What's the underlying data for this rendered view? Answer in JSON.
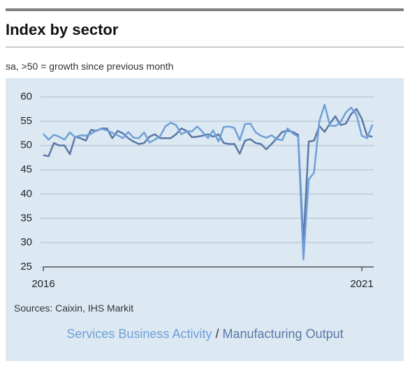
{
  "chart_data": {
    "type": "line",
    "title": "Index by sector",
    "subtitle": "sa, >50 = growth since previous month",
    "source": "Sources: Caixin, IHS Markit",
    "legend_separator": "/",
    "categories": [
      "2016",
      null,
      null,
      null,
      null,
      null,
      null,
      null,
      null,
      null,
      null,
      null,
      null,
      null,
      null,
      null,
      null,
      null,
      null,
      null,
      null,
      null,
      null,
      null,
      null,
      null,
      null,
      null,
      null,
      null,
      null,
      null,
      null,
      null,
      null,
      null,
      null,
      null,
      null,
      null,
      null,
      null,
      null,
      null,
      null,
      null,
      null,
      null,
      null,
      null,
      null,
      null,
      null,
      null,
      null,
      null,
      null,
      null,
      null,
      null,
      "2021",
      null,
      null
    ],
    "ylim": [
      25,
      60
    ],
    "yticks": [
      25,
      30,
      35,
      40,
      45,
      50,
      55,
      60
    ],
    "grid": true,
    "series": [
      {
        "name": "Services Business Activity",
        "color": "#6f9fd8",
        "values": [
          52.4,
          51.2,
          52.2,
          51.8,
          51.2,
          52.7,
          51.7,
          52.1,
          52.0,
          52.4,
          53.1,
          53.4,
          53.1,
          52.6,
          52.1,
          51.5,
          52.8,
          51.6,
          51.5,
          52.7,
          50.6,
          51.2,
          51.9,
          53.9,
          54.7,
          54.2,
          52.3,
          52.9,
          52.9,
          53.9,
          52.8,
          51.5,
          53.1,
          50.8,
          53.8,
          53.9,
          53.6,
          51.1,
          54.4,
          54.5,
          52.7,
          52.0,
          51.6,
          52.1,
          51.3,
          51.1,
          53.5,
          52.5,
          51.8,
          26.5,
          43.0,
          44.4,
          55.0,
          58.4,
          54.1,
          54.0,
          54.8,
          56.8,
          57.8,
          56.3,
          52.0,
          51.5,
          54.3
        ]
      },
      {
        "name": "Manufacturing Output",
        "color": "#5b77a6",
        "values": [
          48.0,
          47.8,
          50.5,
          50.0,
          50.0,
          48.2,
          51.8,
          51.5,
          51.0,
          53.2,
          53.0,
          53.5,
          53.5,
          51.5,
          53.0,
          52.5,
          51.5,
          50.8,
          50.3,
          50.5,
          51.8,
          52.3,
          51.5,
          51.5,
          51.5,
          52.3,
          53.5,
          53.0,
          51.7,
          51.8,
          52.0,
          52.3,
          51.8,
          52.3,
          50.5,
          50.3,
          50.3,
          48.3,
          51.0,
          51.3,
          50.5,
          50.3,
          49.2,
          50.3,
          51.5,
          52.8,
          53.0,
          52.8,
          52.2,
          30.0,
          50.8,
          51.0,
          54.0,
          52.8,
          54.5,
          56.0,
          54.2,
          54.5,
          56.5,
          57.5,
          55.5,
          52.0,
          51.8
        ]
      }
    ]
  }
}
